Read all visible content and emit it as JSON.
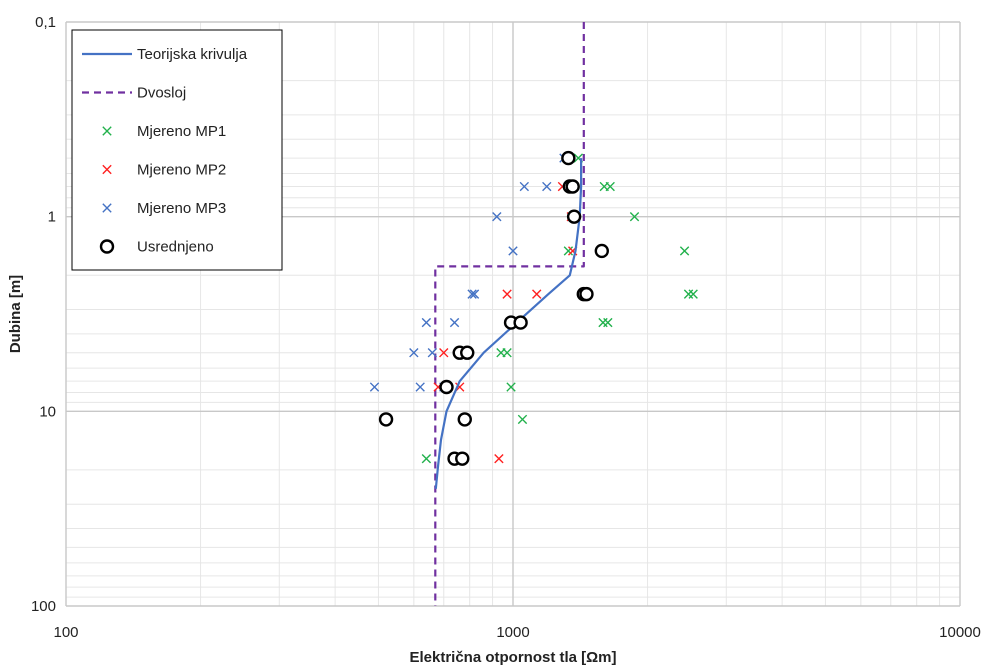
{
  "chart_data": {
    "type": "scatter",
    "xlabel": "Električna otpornost tla [Ωm]",
    "ylabel": "Dubina [m]",
    "x_scale": "log",
    "y_scale": "log",
    "y_inverted": true,
    "xlim": [
      100,
      10000
    ],
    "ylim": [
      0.1,
      100
    ],
    "x_ticks": [
      {
        "value": 100,
        "label": "100"
      },
      {
        "value": 1000,
        "label": "1000"
      },
      {
        "value": 10000,
        "label": "10000"
      }
    ],
    "y_ticks": [
      {
        "value": 0.1,
        "label": "0,1"
      },
      {
        "value": 1,
        "label": "1"
      },
      {
        "value": 10,
        "label": "10"
      },
      {
        "value": 100,
        "label": "100"
      }
    ],
    "grid": true,
    "legend_position": "top-left",
    "series": [
      {
        "name": "Teorijska krivulja",
        "kind": "line",
        "color": "#4472c4",
        "points": [
          [
            1420,
            0.5
          ],
          [
            1420,
            0.7
          ],
          [
            1410,
            1.0
          ],
          [
            1380,
            1.5
          ],
          [
            1340,
            2.0
          ],
          [
            1200,
            2.5
          ],
          [
            1020,
            3.5
          ],
          [
            860,
            5.0
          ],
          [
            760,
            7.0
          ],
          [
            710,
            10.0
          ],
          [
            690,
            14.0
          ],
          [
            680,
            19.0
          ],
          [
            672,
            25.0
          ]
        ]
      },
      {
        "name": "Dvosloj",
        "kind": "dashed-line",
        "color": "#7030a0",
        "points": [
          [
            1440,
            0.1
          ],
          [
            1440,
            1.8
          ],
          [
            670,
            1.8
          ],
          [
            670,
            100
          ]
        ]
      },
      {
        "name": "Mjereno MP1",
        "kind": "markers",
        "marker": "x",
        "color": "#22b14c",
        "points": [
          [
            1400,
            0.5
          ],
          [
            1600,
            0.7
          ],
          [
            1650,
            0.7
          ],
          [
            1870,
            1.0
          ],
          [
            1330,
            1.5
          ],
          [
            2420,
            1.5
          ],
          [
            2470,
            2.5
          ],
          [
            2530,
            2.5
          ],
          [
            1590,
            3.5
          ],
          [
            1630,
            3.5
          ],
          [
            940,
            5.0
          ],
          [
            970,
            5.0
          ],
          [
            990,
            7.5
          ],
          [
            1050,
            11.0
          ],
          [
            640,
            17.5
          ]
        ]
      },
      {
        "name": "Mjereno MP2",
        "kind": "markers",
        "marker": "x",
        "color": "#ff2020",
        "points": [
          [
            1290,
            0.7
          ],
          [
            1350,
            1.0
          ],
          [
            1360,
            1.5
          ],
          [
            970,
            2.5
          ],
          [
            1130,
            2.5
          ],
          [
            700,
            5.0
          ],
          [
            770,
            5.0
          ],
          [
            680,
            7.5
          ],
          [
            760,
            7.5
          ],
          [
            930,
            17.5
          ],
          [
            520,
            11.0
          ]
        ]
      },
      {
        "name": "Mjereno MP3",
        "kind": "markers",
        "marker": "x",
        "color": "#4472c4",
        "points": [
          [
            1300,
            0.5
          ],
          [
            1060,
            0.7
          ],
          [
            1190,
            0.7
          ],
          [
            920,
            1.0
          ],
          [
            1000,
            1.5
          ],
          [
            810,
            2.5
          ],
          [
            820,
            2.5
          ],
          [
            640,
            3.5
          ],
          [
            740,
            3.5
          ],
          [
            600,
            5.0
          ],
          [
            660,
            5.0
          ],
          [
            490,
            7.5
          ],
          [
            620,
            7.5
          ],
          [
            700,
            7.5
          ]
        ]
      },
      {
        "name": "Usrednjeno",
        "kind": "markers",
        "marker": "circle",
        "color": "#000000",
        "points": [
          [
            1330,
            0.5
          ],
          [
            1340,
            0.7
          ],
          [
            1360,
            0.7
          ],
          [
            1370,
            1.0
          ],
          [
            1580,
            1.5
          ],
          [
            1440,
            2.5
          ],
          [
            1460,
            2.5
          ],
          [
            990,
            3.5
          ],
          [
            1040,
            3.5
          ],
          [
            760,
            5.0
          ],
          [
            790,
            5.0
          ],
          [
            710,
            7.5
          ],
          [
            520,
            11.0
          ],
          [
            780,
            11.0
          ],
          [
            740,
            17.5
          ],
          [
            770,
            17.5
          ]
        ]
      }
    ]
  }
}
